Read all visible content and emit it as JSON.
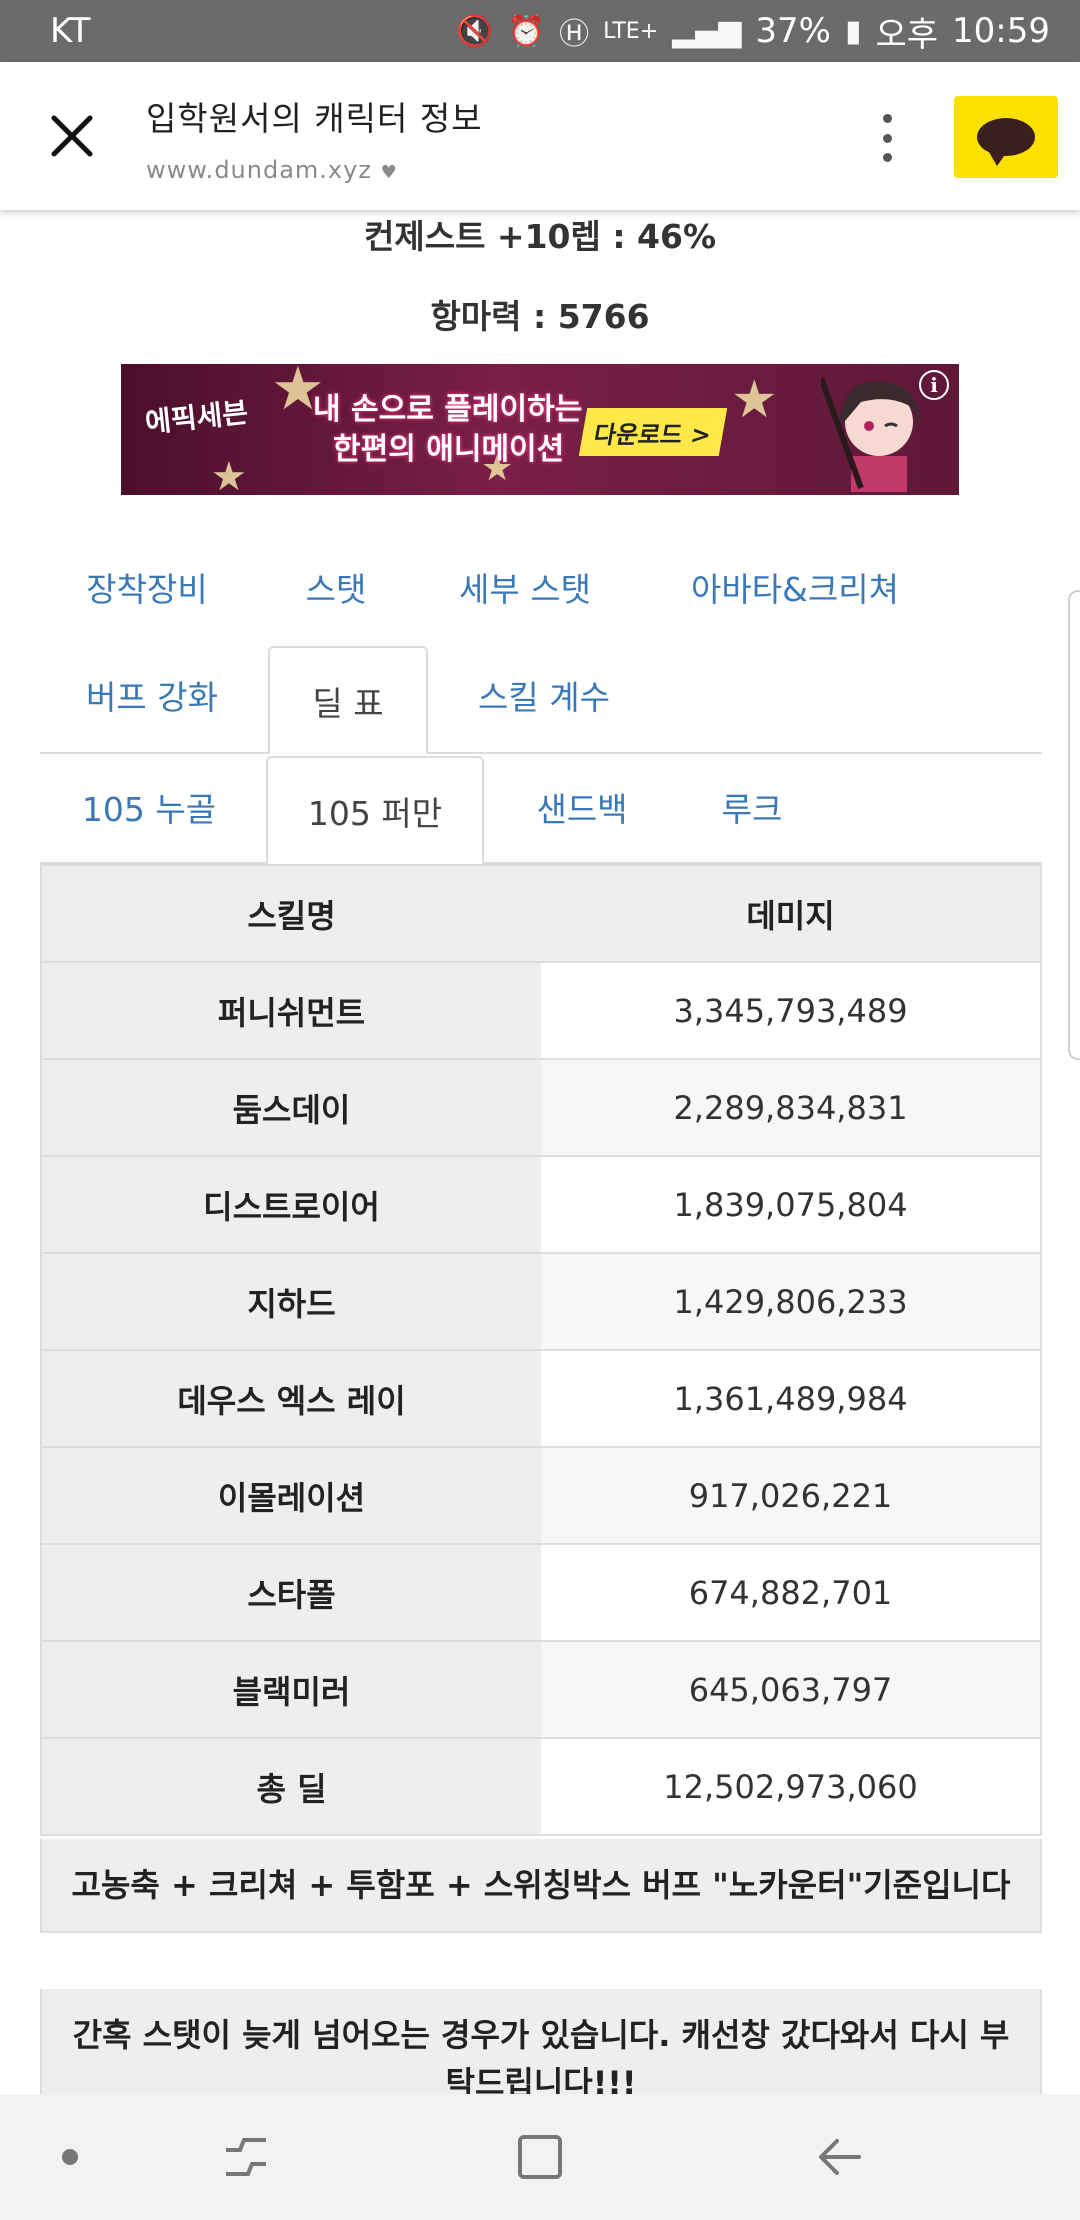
{
  "status_bar": {
    "carrier": "KT",
    "battery": "37%",
    "network": "LTE+",
    "ampm": "오후",
    "time": "10:59"
  },
  "header": {
    "title": "입학원서의 캐릭터 정보",
    "url": "www.dundam.xyz"
  },
  "stats": {
    "line1": "컨제스트 +10렙 : 46%",
    "line2": "항마력 : 5766"
  },
  "ad": {
    "brand": "에픽세븐",
    "copy_line1": "내 손으로 플레이하는",
    "copy_line2": "한편의 애니메이션",
    "cta": "다운로드 >",
    "info_icon": "info-icon"
  },
  "main_tabs": [
    {
      "label": "장착장비"
    },
    {
      "label": "스탯"
    },
    {
      "label": "세부 스탯"
    },
    {
      "label": "아바타&크리쳐"
    },
    {
      "label": "버프 강화"
    },
    {
      "label": "딜 표"
    },
    {
      "label": "스킬 계수"
    }
  ],
  "sub_tabs": [
    {
      "label": "105 누골"
    },
    {
      "label": "105 퍼만"
    },
    {
      "label": "샌드백"
    },
    {
      "label": "루크"
    }
  ],
  "table": {
    "headers": [
      "스킬명",
      "데미지"
    ],
    "rows": [
      {
        "skill": "퍼니쉬먼트",
        "damage": "3,345,793,489"
      },
      {
        "skill": "둠스데이",
        "damage": "2,289,834,831"
      },
      {
        "skill": "디스트로이어",
        "damage": "1,839,075,804"
      },
      {
        "skill": "지하드",
        "damage": "1,429,806,233"
      },
      {
        "skill": "데우스 엑스 레이",
        "damage": "1,361,489,984"
      },
      {
        "skill": "이몰레이션",
        "damage": "917,026,221"
      },
      {
        "skill": "스타폴",
        "damage": "674,882,701"
      },
      {
        "skill": "블랙미러",
        "damage": "645,063,797"
      },
      {
        "skill": "총 딜",
        "damage": "12,502,973,060"
      }
    ]
  },
  "notes": [
    "고농축 + 크리쳐 + 투함포 + 스위칭박스 버프 \"노카운터\"기준입니다",
    "간혹 스탯이 늦게 넘어오는 경우가 있습니다. 캐선창 갔다와서 다시 부탁드립니다!!!"
  ],
  "colors": {
    "link": "#3a78b8",
    "kakao_yellow": "#fae100",
    "table_header_bg": "#eeeeee"
  }
}
